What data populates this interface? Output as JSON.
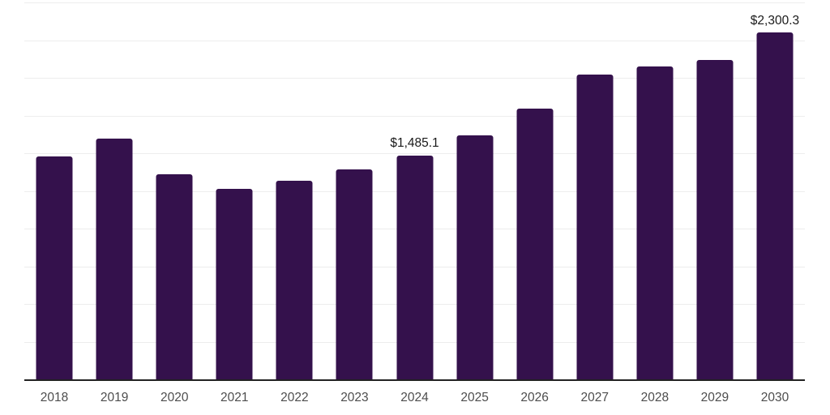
{
  "chart_data": {
    "type": "bar",
    "title": "",
    "xlabel": "",
    "ylabel": "",
    "categories": [
      "2018",
      "2019",
      "2020",
      "2021",
      "2022",
      "2023",
      "2024",
      "2025",
      "2026",
      "2027",
      "2028",
      "2029",
      "2030"
    ],
    "values": [
      1477,
      1597,
      1362,
      1262,
      1318,
      1392,
      1485.1,
      1620,
      1794,
      2023,
      2078,
      2121,
      2300.3
    ],
    "point_labels": [
      "",
      "",
      "",
      "",
      "",
      "",
      "$1,485.1",
      "",
      "",
      "",
      "",
      "",
      "$2,300.3"
    ],
    "ylim": [
      0,
      2500
    ],
    "gridline_interval": 250,
    "grid": true,
    "legend": "none",
    "colors": {
      "bar": "#34114C",
      "gridline": "#ededed",
      "axis_line": "#222222",
      "tick_label": "#4d4d4d",
      "data_label": "#1a1a1a",
      "background": "#ffffff"
    }
  }
}
